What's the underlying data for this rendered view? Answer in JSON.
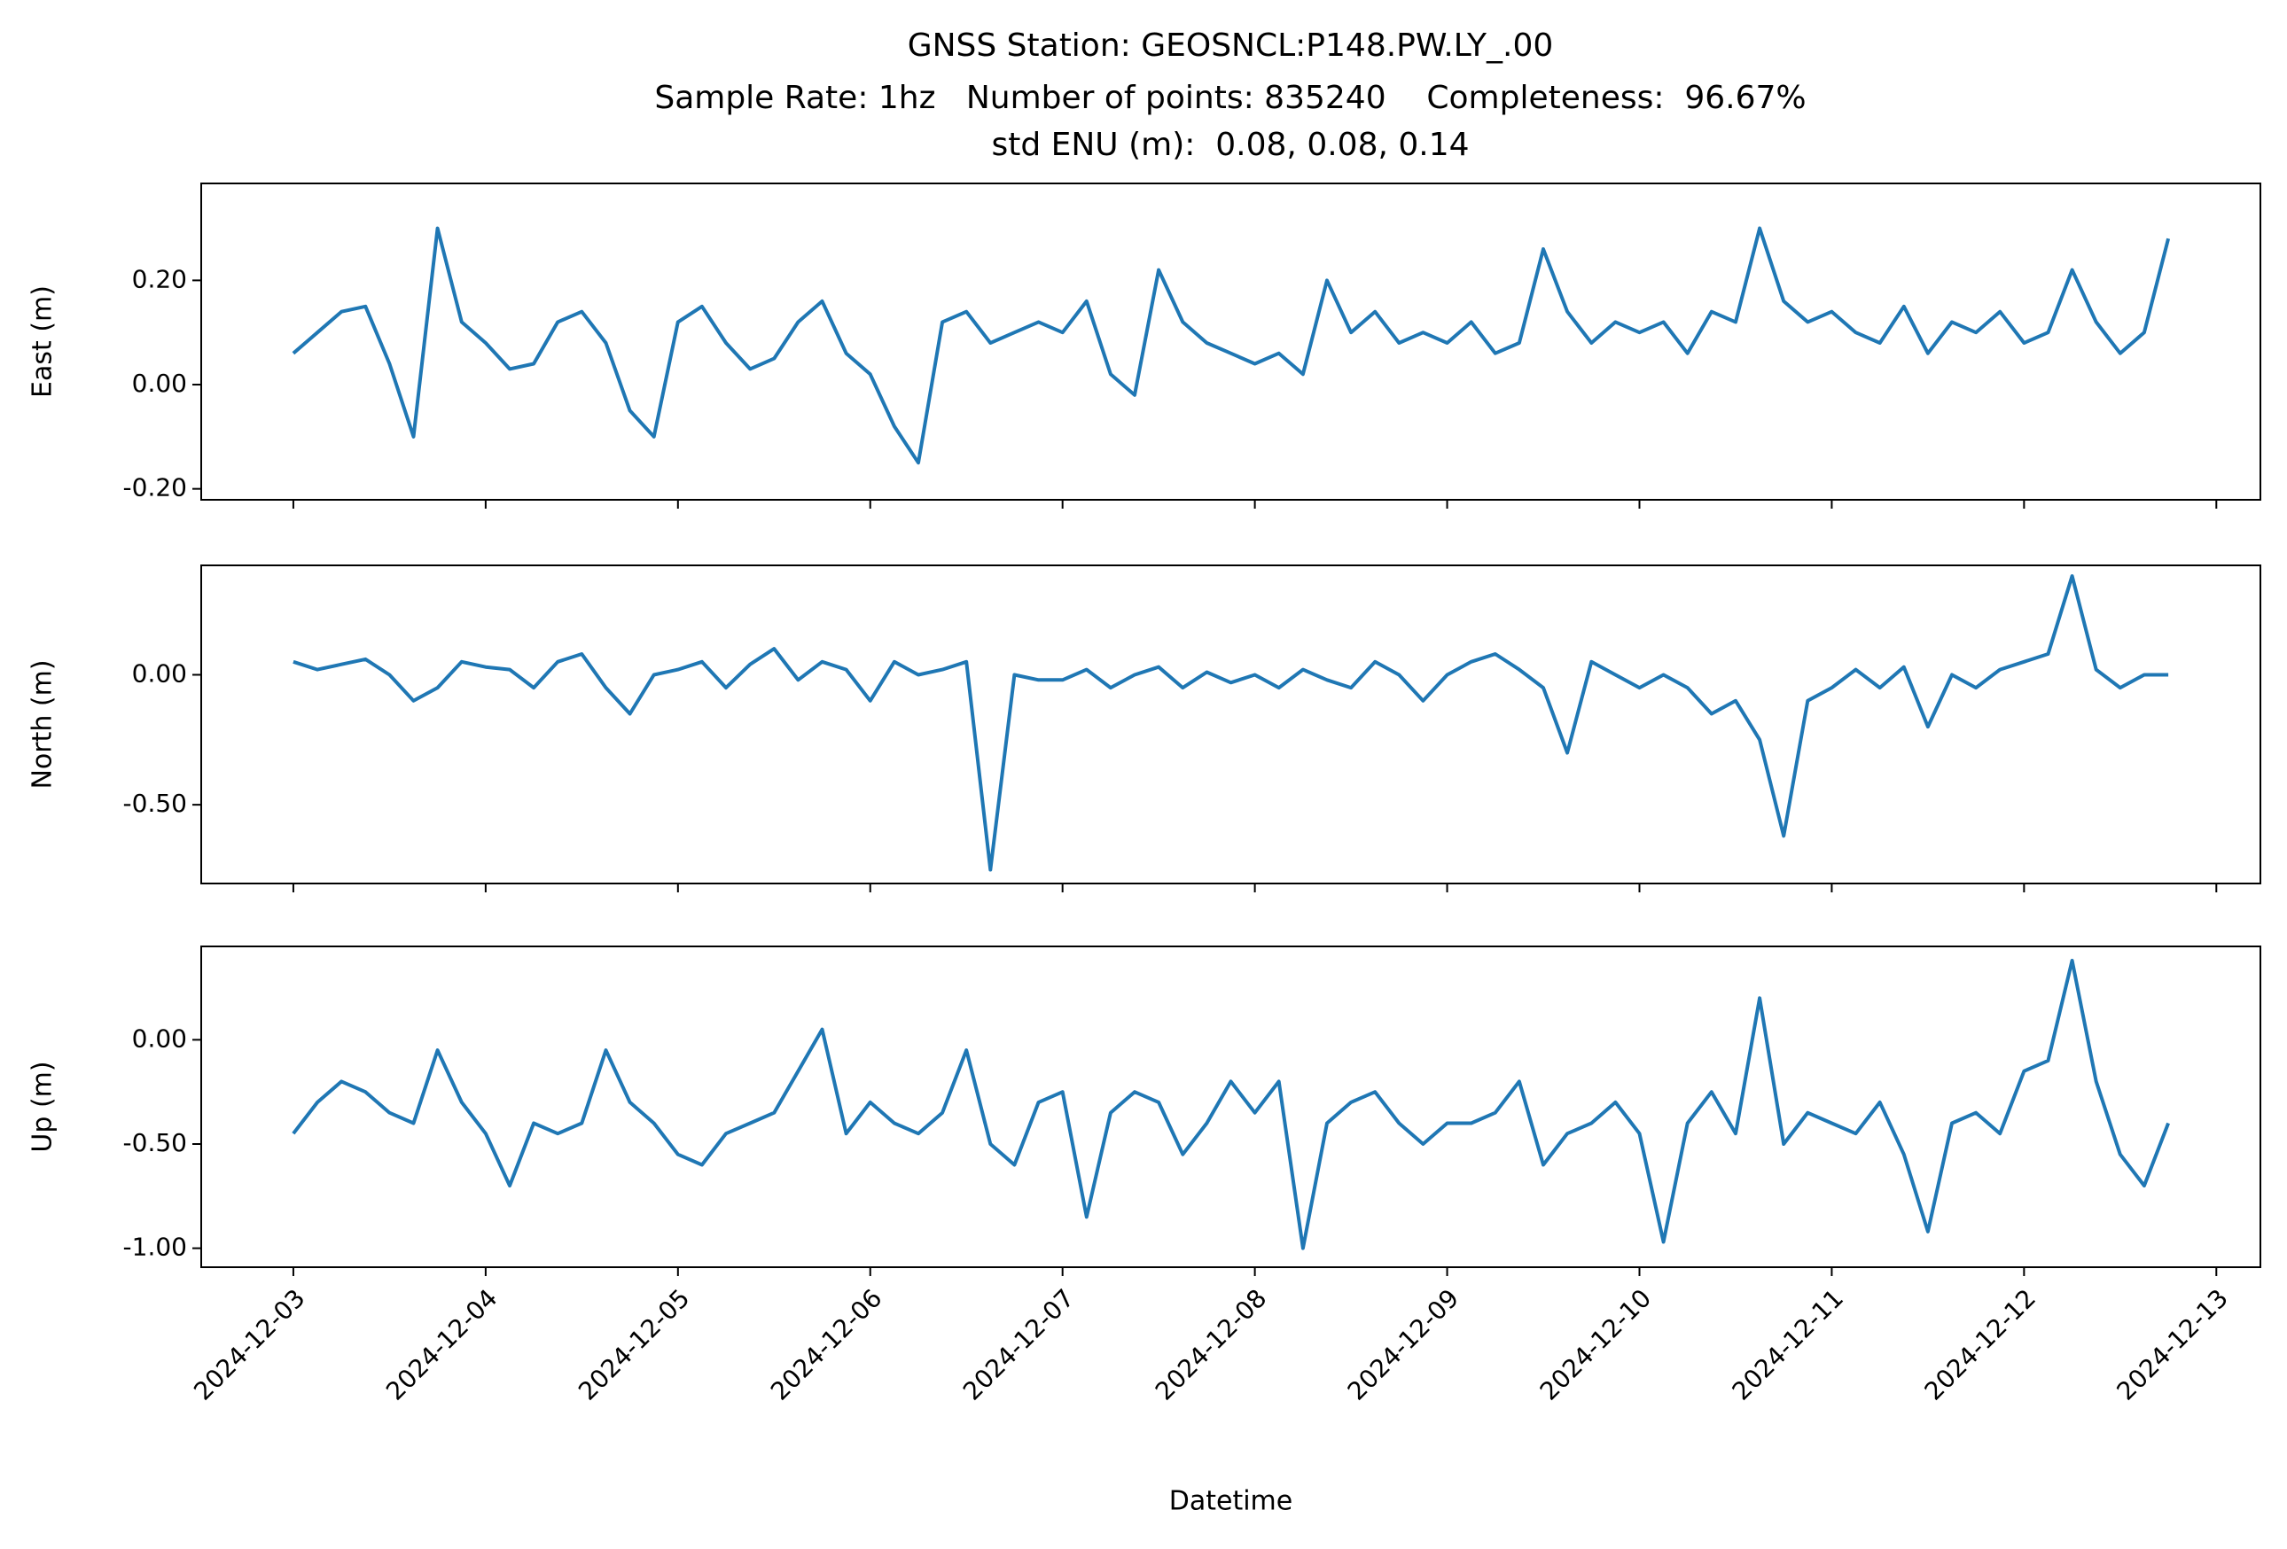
{
  "title": [
    "GNSS Station: GEOSNCL:P148.PW.LY_.00",
    "Sample Rate: 1hz   Number of points: 835240    Completeness:  96.67%",
    "std ENU (m):  0.08, 0.08, 0.14"
  ],
  "chart_data": [
    {
      "type": "line",
      "ylabel": "East (m)",
      "ylim": [
        -0.221,
        0.386
      ],
      "yticks": [
        {
          "value": -0.2,
          "label": "-0.20"
        },
        {
          "value": 0,
          "label": "0.00"
        },
        {
          "value": 0.2,
          "label": "0.20"
        }
      ],
      "color": "#1f77b4",
      "values": [
        0.06,
        0.1,
        0.14,
        0.15,
        0.04,
        -0.1,
        0.3,
        0.12,
        0.08,
        0.03,
        0.04,
        0.12,
        0.14,
        0.08,
        -0.05,
        -0.1,
        0.12,
        0.15,
        0.08,
        0.03,
        0.05,
        0.12,
        0.16,
        0.06,
        0.02,
        -0.08,
        -0.15,
        0.12,
        0.14,
        0.08,
        0.1,
        0.12,
        0.1,
        0.16,
        0.02,
        -0.02,
        0.22,
        0.12,
        0.08,
        0.06,
        0.04,
        0.06,
        0.02,
        0.2,
        0.1,
        0.14,
        0.08,
        0.1,
        0.08,
        0.12,
        0.06,
        0.08,
        0.26,
        0.14,
        0.08,
        0.12,
        0.1,
        0.12,
        0.06,
        0.14,
        0.12,
        0.3,
        0.16,
        0.12,
        0.14,
        0.1,
        0.08,
        0.15,
        0.06,
        0.12,
        0.1,
        0.14,
        0.08,
        0.1,
        0.22,
        0.12,
        0.06,
        0.1,
        0.28
      ]
    },
    {
      "type": "line",
      "ylabel": "North (m)",
      "ylim": [
        -0.803,
        0.421
      ],
      "yticks": [
        {
          "value": -0.5,
          "label": "-0.50"
        },
        {
          "value": 0,
          "label": "0.00"
        }
      ],
      "color": "#1f77b4",
      "values": [
        0.05,
        0.02,
        0.04,
        0.06,
        0.0,
        -0.1,
        -0.05,
        0.05,
        0.03,
        0.02,
        -0.05,
        0.05,
        0.08,
        -0.05,
        -0.15,
        0.0,
        0.02,
        0.05,
        -0.05,
        0.04,
        0.1,
        -0.02,
        0.05,
        0.02,
        -0.1,
        0.05,
        0.0,
        0.02,
        0.05,
        -0.75,
        0.0,
        -0.02,
        -0.02,
        0.02,
        -0.05,
        0.0,
        0.03,
        -0.05,
        0.01,
        -0.03,
        0.0,
        -0.05,
        0.02,
        -0.02,
        -0.05,
        0.05,
        0.0,
        -0.1,
        0.0,
        0.05,
        0.08,
        0.02,
        -0.05,
        -0.3,
        0.05,
        0.0,
        -0.05,
        0.0,
        -0.05,
        -0.15,
        -0.1,
        -0.25,
        -0.62,
        -0.1,
        -0.05,
        0.02,
        -0.05,
        0.03,
        -0.2,
        0.0,
        -0.05,
        0.02,
        0.05,
        0.08,
        0.38,
        0.02,
        -0.05,
        0.0,
        0.0
      ]
    },
    {
      "type": "line",
      "ylabel": "Up (m)",
      "xlabel": "Datetime",
      "ylim": [
        -1.091,
        0.448
      ],
      "yticks": [
        {
          "value": -1,
          "label": "-1.00"
        },
        {
          "value": -0.5,
          "label": "-0.50"
        },
        {
          "value": 0,
          "label": "0.00"
        }
      ],
      "xlim": [
        "2024-12-02 12:30",
        "2024-12-13 05:30"
      ],
      "xticks": [
        "2024-12-03",
        "2024-12-04",
        "2024-12-05",
        "2024-12-06",
        "2024-12-07",
        "2024-12-08",
        "2024-12-09",
        "2024-12-10",
        "2024-12-11",
        "2024-12-12",
        "2024-12-13"
      ],
      "color": "#1f77b4",
      "x": [
        "2024-12-03 00:00",
        "2024-12-03 03:00",
        "2024-12-03 06:00",
        "2024-12-03 09:00",
        "2024-12-03 12:00",
        "2024-12-03 15:00",
        "2024-12-03 18:00",
        "2024-12-03 21:00",
        "2024-12-04 00:00",
        "2024-12-04 03:00",
        "2024-12-04 06:00",
        "2024-12-04 09:00",
        "2024-12-04 12:00",
        "2024-12-04 15:00",
        "2024-12-04 18:00",
        "2024-12-04 21:00",
        "2024-12-05 00:00",
        "2024-12-05 03:00",
        "2024-12-05 06:00",
        "2024-12-05 09:00",
        "2024-12-05 12:00",
        "2024-12-05 15:00",
        "2024-12-05 18:00",
        "2024-12-05 21:00",
        "2024-12-06 00:00",
        "2024-12-06 03:00",
        "2024-12-06 06:00",
        "2024-12-06 09:00",
        "2024-12-06 12:00",
        "2024-12-06 15:00",
        "2024-12-06 18:00",
        "2024-12-06 21:00",
        "2024-12-07 00:00",
        "2024-12-07 03:00",
        "2024-12-07 06:00",
        "2024-12-07 09:00",
        "2024-12-07 12:00",
        "2024-12-07 15:00",
        "2024-12-07 18:00",
        "2024-12-07 21:00",
        "2024-12-08 00:00",
        "2024-12-08 03:00",
        "2024-12-08 06:00",
        "2024-12-08 09:00",
        "2024-12-08 12:00",
        "2024-12-08 15:00",
        "2024-12-08 18:00",
        "2024-12-08 21:00",
        "2024-12-09 00:00",
        "2024-12-09 03:00",
        "2024-12-09 06:00",
        "2024-12-09 09:00",
        "2024-12-09 12:00",
        "2024-12-09 15:00",
        "2024-12-09 18:00",
        "2024-12-09 21:00",
        "2024-12-10 00:00",
        "2024-12-10 03:00",
        "2024-12-10 06:00",
        "2024-12-10 09:00",
        "2024-12-10 12:00",
        "2024-12-10 15:00",
        "2024-12-10 18:00",
        "2024-12-10 21:00",
        "2024-12-11 00:00",
        "2024-12-11 03:00",
        "2024-12-11 06:00",
        "2024-12-11 09:00",
        "2024-12-11 12:00",
        "2024-12-11 15:00",
        "2024-12-11 18:00",
        "2024-12-11 21:00",
        "2024-12-12 00:00",
        "2024-12-12 03:00",
        "2024-12-12 06:00",
        "2024-12-12 09:00",
        "2024-12-12 12:00",
        "2024-12-12 15:00",
        "2024-12-12 18:00"
      ],
      "values": [
        -0.45,
        -0.3,
        -0.2,
        -0.25,
        -0.35,
        -0.4,
        -0.05,
        -0.3,
        -0.45,
        -0.7,
        -0.4,
        -0.45,
        -0.4,
        -0.05,
        -0.3,
        -0.4,
        -0.55,
        -0.6,
        -0.45,
        -0.4,
        -0.35,
        -0.15,
        0.05,
        -0.45,
        -0.3,
        -0.4,
        -0.45,
        -0.35,
        -0.05,
        -0.5,
        -0.6,
        -0.3,
        -0.25,
        -0.85,
        -0.35,
        -0.25,
        -0.3,
        -0.55,
        -0.4,
        -0.2,
        -0.35,
        -0.2,
        -1.0,
        -0.4,
        -0.3,
        -0.25,
        -0.4,
        -0.5,
        -0.4,
        -0.4,
        -0.35,
        -0.2,
        -0.6,
        -0.45,
        -0.4,
        -0.3,
        -0.45,
        -0.97,
        -0.4,
        -0.25,
        -0.45,
        0.2,
        -0.5,
        -0.35,
        -0.4,
        -0.45,
        -0.3,
        -0.55,
        -0.92,
        -0.4,
        -0.35,
        -0.45,
        -0.15,
        -0.1,
        0.38,
        -0.2,
        -0.55,
        -0.7,
        -0.4
      ]
    }
  ]
}
